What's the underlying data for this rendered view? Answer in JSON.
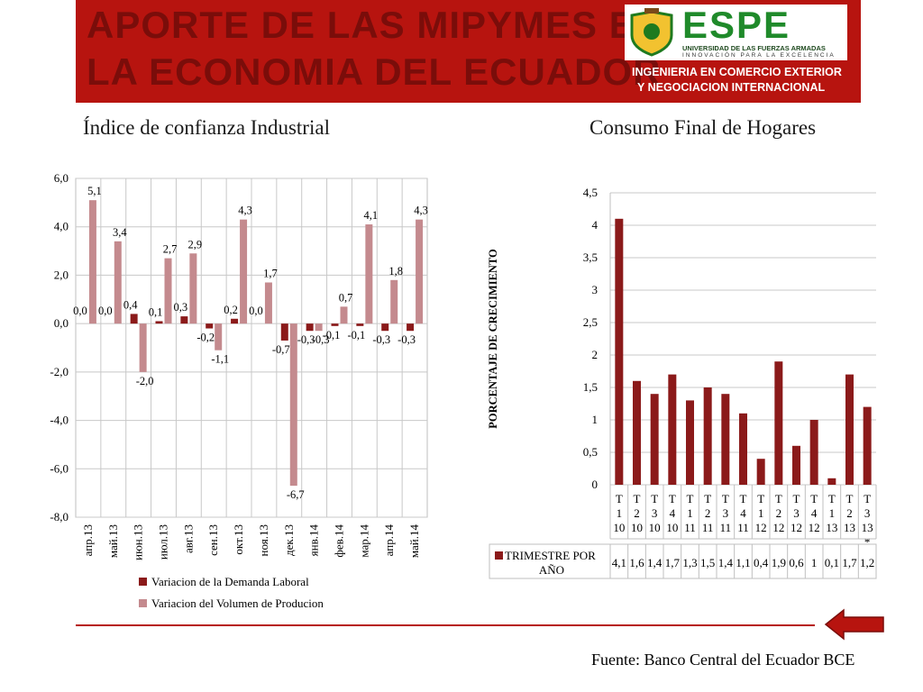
{
  "header": {
    "title_line1": "APORTE DE LAS MIPYMES EN",
    "title_line2": "LA ECONOMIA DEL ECUADOR",
    "logo_text": "ESPE",
    "logo_subtitle": "UNIVERSIDAD DE LAS FUERZAS ARMADAS",
    "logo_tagline": "INNOVACIÓN PARA LA EXCELENCIA",
    "program_line1": "INGENIERIA EN COMERCIO EXTERIOR",
    "program_line2": "Y NEGOCIACION INTERNACIONAL"
  },
  "left_title": "Índice de confianza Industrial",
  "right_title": "Consumo Final de Hogares",
  "source": "Fuente: Banco Central del Ecuador BCE",
  "colors": {
    "brand_red": "#b7140f",
    "series_dark": "#8b1a1a",
    "series_light": "#c48a8e"
  },
  "chart_data": [
    {
      "type": "bar",
      "categories": [
        "апр.13",
        "май.13",
        "июн.13",
        "июл.13",
        "авг.13",
        "сен.13",
        "окт.13",
        "ноя.13",
        "дек.13",
        "янв.14",
        "фев.14",
        "мар.14",
        "апр.14",
        "май.14"
      ],
      "series": [
        {
          "name": "Variacion de la Demanda Laboral",
          "values": [
            0.0,
            0.0,
            0.4,
            0.1,
            0.3,
            -0.2,
            0.2,
            0.0,
            -0.7,
            -0.3,
            -0.1,
            -0.1,
            -0.3,
            -0.3
          ]
        },
        {
          "name": "Variacion del Volumen de Producion",
          "values": [
            5.1,
            3.4,
            -2.0,
            2.7,
            2.9,
            -1.1,
            4.3,
            1.7,
            -6.7,
            -0.3,
            0.7,
            4.1,
            1.8,
            4.3
          ]
        }
      ],
      "yticks": [
        "6,0",
        "4,0",
        "2,0",
        "0,0",
        "-2,0",
        "-4,0",
        "-6,0",
        "-8,0"
      ],
      "ylim": [
        -8,
        6
      ],
      "grid": true,
      "legend_position": "bottom"
    },
    {
      "type": "bar",
      "categories": [
        "T 1 10",
        "T 2 10",
        "T 3 10",
        "T 4 10",
        "T 1 11",
        "T 2 11",
        "T 3 11",
        "T 4 11",
        "T 1 12",
        "T 2 12",
        "T 3 12",
        "T 4 12",
        "T 1 13",
        "T 2 13",
        "T 3 13 *"
      ],
      "series": [
        {
          "name": "TRIMESTRE POR AÑO",
          "values": [
            4.1,
            1.6,
            1.4,
            1.7,
            1.3,
            1.5,
            1.4,
            1.1,
            0.4,
            1.9,
            0.6,
            1,
            0.1,
            1.7,
            1.2
          ]
        }
      ],
      "table_values": [
        "4,1",
        "1,6",
        "1,4",
        "1,7",
        "1,3",
        "1,5",
        "1,4",
        "1,1",
        "0,4",
        "1,9",
        "0,6",
        "1",
        "0,1",
        "1,7",
        "1,2"
      ],
      "yticks": [
        "4,5",
        "4",
        "3,5",
        "3",
        "2,5",
        "2",
        "1,5",
        "1",
        "0,5",
        "0"
      ],
      "ylabel": "PORCENTAJE DE CRECIMIENTO",
      "ylim": [
        0,
        4.5
      ],
      "grid": true,
      "legend_position": "bottom-table"
    }
  ]
}
